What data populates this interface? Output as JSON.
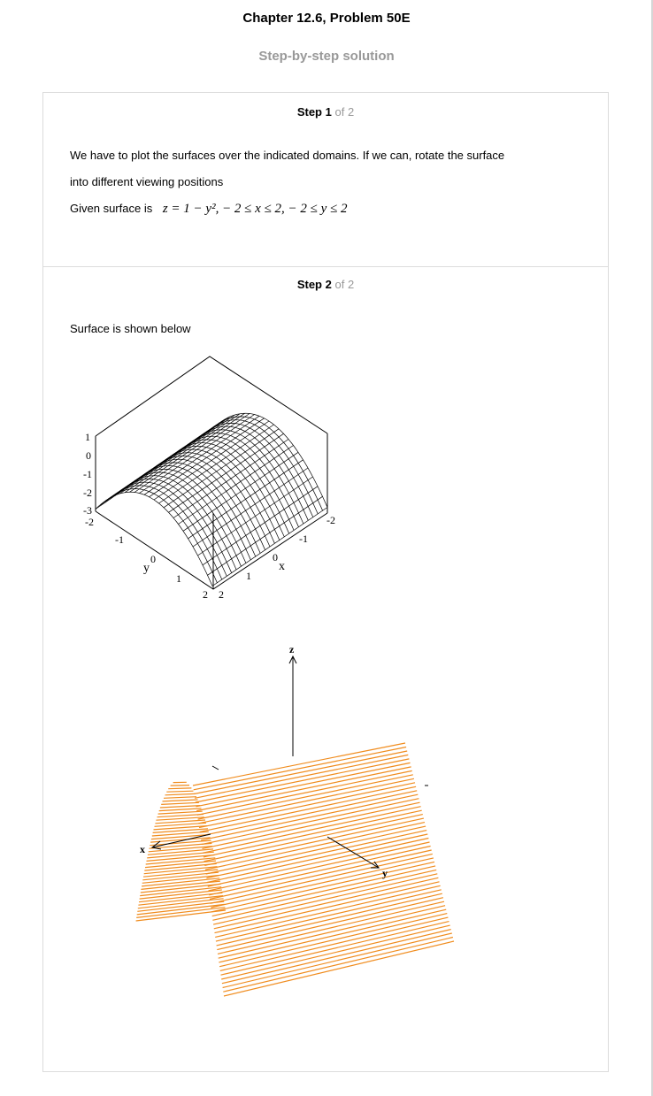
{
  "page": {
    "title": "Chapter 12.6, Problem 50E",
    "subtitle": "Step-by-step solution"
  },
  "steps": [
    {
      "label": "Step",
      "number": "1",
      "of_text": "of 2",
      "text_line1": "We have to plot the surfaces over the indicated domains. If we can, rotate the surface",
      "text_line2": "into different viewing positions",
      "given_label": "Given surface is",
      "equation": "z = 1 − y², − 2 ≤ x ≤ 2, − 2 ≤ y ≤ 2"
    },
    {
      "label": "Step",
      "number": "2",
      "of_text": "of 2",
      "text": "Surface is shown below"
    }
  ],
  "figure1": {
    "z_ticks": [
      "1",
      "0",
      "-1",
      "-2",
      "-3"
    ],
    "y_axis_label": "y",
    "y_ticks": [
      "-2",
      "-1",
      "0",
      "1",
      "2"
    ],
    "x_axis_label": "x",
    "x_ticks": [
      "2",
      "1",
      "0",
      "-1",
      "-2"
    ],
    "surface_color": "#000000"
  },
  "figure2": {
    "axis_z": "z",
    "axis_x": "x",
    "axis_y": "y",
    "surface_color": "#f08c1e"
  }
}
